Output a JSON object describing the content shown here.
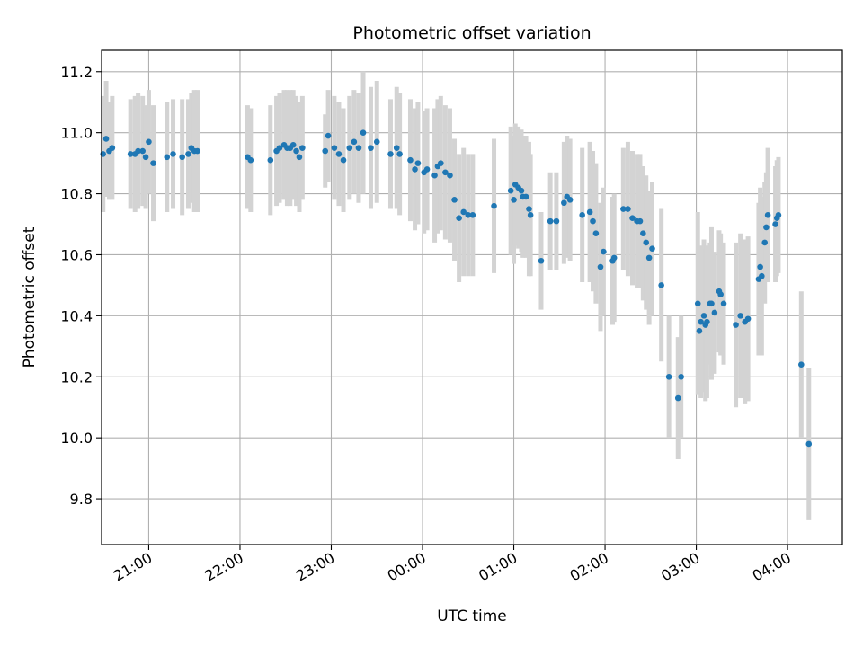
{
  "chart_data": {
    "type": "scatter",
    "title": "Photometric offset variation",
    "xlabel": "UTC time",
    "ylabel": "Photometric offset",
    "xlim": [
      "20:29",
      "04:36"
    ],
    "ylim": [
      9.65,
      11.27
    ],
    "x_ticks": [
      "21:00",
      "22:00",
      "23:00",
      "00:00",
      "01:00",
      "02:00",
      "03:00",
      "04:00"
    ],
    "y_ticks": [
      "9.8",
      "10.0",
      "10.2",
      "10.4",
      "10.6",
      "10.8",
      "11.0",
      "11.2"
    ],
    "grid": true,
    "point_color": "#1f77b4",
    "errorbar_color": "#d3d3d3",
    "series": [
      {
        "points": [
          {
            "t": "20:30",
            "y": 10.93,
            "e": 0.19
          },
          {
            "t": "20:32",
            "y": 10.98,
            "e": 0.19
          },
          {
            "t": "20:34",
            "y": 10.94,
            "e": 0.16
          },
          {
            "t": "20:36",
            "y": 10.95,
            "e": 0.17
          },
          {
            "t": "20:48",
            "y": 10.93,
            "e": 0.18
          },
          {
            "t": "20:51",
            "y": 10.93,
            "e": 0.19
          },
          {
            "t": "20:53",
            "y": 10.94,
            "e": 0.19
          },
          {
            "t": "20:56",
            "y": 10.94,
            "e": 0.18
          },
          {
            "t": "20:58",
            "y": 10.92,
            "e": 0.17
          },
          {
            "t": "21:00",
            "y": 10.97,
            "e": 0.17
          },
          {
            "t": "21:03",
            "y": 10.9,
            "e": 0.19
          },
          {
            "t": "21:12",
            "y": 10.92,
            "e": 0.18
          },
          {
            "t": "21:16",
            "y": 10.93,
            "e": 0.18
          },
          {
            "t": "21:22",
            "y": 10.92,
            "e": 0.19
          },
          {
            "t": "21:26",
            "y": 10.93,
            "e": 0.18
          },
          {
            "t": "21:28",
            "y": 10.95,
            "e": 0.18
          },
          {
            "t": "21:30",
            "y": 10.94,
            "e": 0.2
          },
          {
            "t": "21:32",
            "y": 10.94,
            "e": 0.2
          },
          {
            "t": "22:05",
            "y": 10.92,
            "e": 0.17
          },
          {
            "t": "22:07",
            "y": 10.91,
            "e": 0.17
          },
          {
            "t": "22:20",
            "y": 10.91,
            "e": 0.18
          },
          {
            "t": "22:24",
            "y": 10.94,
            "e": 0.18
          },
          {
            "t": "22:26",
            "y": 10.95,
            "e": 0.18
          },
          {
            "t": "22:29",
            "y": 10.96,
            "e": 0.18
          },
          {
            "t": "22:31",
            "y": 10.95,
            "e": 0.19
          },
          {
            "t": "22:33",
            "y": 10.95,
            "e": 0.19
          },
          {
            "t": "22:35",
            "y": 10.96,
            "e": 0.18
          },
          {
            "t": "22:37",
            "y": 10.94,
            "e": 0.18
          },
          {
            "t": "22:39",
            "y": 10.92,
            "e": 0.18
          },
          {
            "t": "22:41",
            "y": 10.95,
            "e": 0.17
          },
          {
            "t": "22:56",
            "y": 10.94,
            "e": 0.12
          },
          {
            "t": "22:58",
            "y": 10.99,
            "e": 0.15
          },
          {
            "t": "23:02",
            "y": 10.95,
            "e": 0.17
          },
          {
            "t": "23:05",
            "y": 10.93,
            "e": 0.17
          },
          {
            "t": "23:08",
            "y": 10.91,
            "e": 0.17
          },
          {
            "t": "23:12",
            "y": 10.95,
            "e": 0.17
          },
          {
            "t": "23:15",
            "y": 10.97,
            "e": 0.17
          },
          {
            "t": "23:18",
            "y": 10.95,
            "e": 0.18
          },
          {
            "t": "23:21",
            "y": 11.0,
            "e": 0.2
          },
          {
            "t": "23:26",
            "y": 10.95,
            "e": 0.2
          },
          {
            "t": "23:30",
            "y": 10.97,
            "e": 0.2
          },
          {
            "t": "23:39",
            "y": 10.93,
            "e": 0.18
          },
          {
            "t": "23:43",
            "y": 10.95,
            "e": 0.2
          },
          {
            "t": "23:45",
            "y": 10.93,
            "e": 0.2
          },
          {
            "t": "23:52",
            "y": 10.91,
            "e": 0.2
          },
          {
            "t": "23:55",
            "y": 10.88,
            "e": 0.2
          },
          {
            "t": "23:57",
            "y": 10.9,
            "e": 0.2
          },
          {
            "t": "00:01",
            "y": 10.87,
            "e": 0.2
          },
          {
            "t": "00:03",
            "y": 10.88,
            "e": 0.2
          },
          {
            "t": "00:08",
            "y": 10.86,
            "e": 0.22
          },
          {
            "t": "00:10",
            "y": 10.89,
            "e": 0.22
          },
          {
            "t": "00:12",
            "y": 10.9,
            "e": 0.22
          },
          {
            "t": "00:15",
            "y": 10.87,
            "e": 0.22
          },
          {
            "t": "00:18",
            "y": 10.86,
            "e": 0.22
          },
          {
            "t": "00:21",
            "y": 10.78,
            "e": 0.2
          },
          {
            "t": "00:24",
            "y": 10.72,
            "e": 0.21
          },
          {
            "t": "00:27",
            "y": 10.74,
            "e": 0.21
          },
          {
            "t": "00:30",
            "y": 10.73,
            "e": 0.2
          },
          {
            "t": "00:33",
            "y": 10.73,
            "e": 0.2
          },
          {
            "t": "00:47",
            "y": 10.76,
            "e": 0.22
          },
          {
            "t": "00:58",
            "y": 10.81,
            "e": 0.21
          },
          {
            "t": "01:00",
            "y": 10.78,
            "e": 0.21
          },
          {
            "t": "01:01",
            "y": 10.83,
            "e": 0.2
          },
          {
            "t": "01:03",
            "y": 10.82,
            "e": 0.2
          },
          {
            "t": "01:05",
            "y": 10.81,
            "e": 0.2
          },
          {
            "t": "01:06",
            "y": 10.79,
            "e": 0.2
          },
          {
            "t": "01:08",
            "y": 10.79,
            "e": 0.2
          },
          {
            "t": "01:10",
            "y": 10.75,
            "e": 0.22
          },
          {
            "t": "01:11",
            "y": 10.73,
            "e": 0.2
          },
          {
            "t": "01:18",
            "y": 10.58,
            "e": 0.16
          },
          {
            "t": "01:24",
            "y": 10.71,
            "e": 0.16
          },
          {
            "t": "01:28",
            "y": 10.71,
            "e": 0.16
          },
          {
            "t": "01:33",
            "y": 10.77,
            "e": 0.2
          },
          {
            "t": "01:35",
            "y": 10.79,
            "e": 0.2
          },
          {
            "t": "01:37",
            "y": 10.78,
            "e": 0.2
          },
          {
            "t": "01:45",
            "y": 10.73,
            "e": 0.22
          },
          {
            "t": "01:50",
            "y": 10.74,
            "e": 0.23
          },
          {
            "t": "01:52",
            "y": 10.71,
            "e": 0.23
          },
          {
            "t": "01:54",
            "y": 10.67,
            "e": 0.23
          },
          {
            "t": "01:57",
            "y": 10.56,
            "e": 0.21
          },
          {
            "t": "01:59",
            "y": 10.61,
            "e": 0.21
          },
          {
            "t": "02:05",
            "y": 10.58,
            "e": 0.21
          },
          {
            "t": "02:06",
            "y": 10.59,
            "e": 0.21
          },
          {
            "t": "02:12",
            "y": 10.75,
            "e": 0.2
          },
          {
            "t": "02:15",
            "y": 10.75,
            "e": 0.22
          },
          {
            "t": "02:18",
            "y": 10.72,
            "e": 0.22
          },
          {
            "t": "02:21",
            "y": 10.71,
            "e": 0.22
          },
          {
            "t": "02:23",
            "y": 10.71,
            "e": 0.22
          },
          {
            "t": "02:25",
            "y": 10.67,
            "e": 0.22
          },
          {
            "t": "02:27",
            "y": 10.64,
            "e": 0.22
          },
          {
            "t": "02:29",
            "y": 10.59,
            "e": 0.22
          },
          {
            "t": "02:31",
            "y": 10.62,
            "e": 0.22
          },
          {
            "t": "02:37",
            "y": 10.5,
            "e": 0.25
          },
          {
            "t": "02:42",
            "y": 10.2,
            "e": 0.2
          },
          {
            "t": "02:48",
            "y": 10.13,
            "e": 0.2
          },
          {
            "t": "02:50",
            "y": 10.2,
            "e": 0.2
          },
          {
            "t": "03:01",
            "y": 10.44,
            "e": 0.3
          },
          {
            "t": "03:02",
            "y": 10.35,
            "e": 0.2
          },
          {
            "t": "03:03",
            "y": 10.38,
            "e": 0.25
          },
          {
            "t": "03:05",
            "y": 10.4,
            "e": 0.25
          },
          {
            "t": "03:06",
            "y": 10.37,
            "e": 0.25
          },
          {
            "t": "03:07",
            "y": 10.38,
            "e": 0.25
          },
          {
            "t": "03:09",
            "y": 10.44,
            "e": 0.2
          },
          {
            "t": "03:10",
            "y": 10.44,
            "e": 0.25
          },
          {
            "t": "03:12",
            "y": 10.41,
            "e": 0.2
          },
          {
            "t": "03:15",
            "y": 10.48,
            "e": 0.2
          },
          {
            "t": "03:16",
            "y": 10.47,
            "e": 0.2
          },
          {
            "t": "03:18",
            "y": 10.44,
            "e": 0.2
          },
          {
            "t": "03:26",
            "y": 10.37,
            "e": 0.27
          },
          {
            "t": "03:29",
            "y": 10.4,
            "e": 0.27
          },
          {
            "t": "03:32",
            "y": 10.38,
            "e": 0.27
          },
          {
            "t": "03:34",
            "y": 10.39,
            "e": 0.27
          },
          {
            "t": "03:41",
            "y": 10.52,
            "e": 0.25
          },
          {
            "t": "03:42",
            "y": 10.56,
            "e": 0.26
          },
          {
            "t": "03:43",
            "y": 10.53,
            "e": 0.26
          },
          {
            "t": "03:45",
            "y": 10.64,
            "e": 0.2
          },
          {
            "t": "03:46",
            "y": 10.69,
            "e": 0.18
          },
          {
            "t": "03:47",
            "y": 10.73,
            "e": 0.22
          },
          {
            "t": "03:52",
            "y": 10.7,
            "e": 0.19
          },
          {
            "t": "03:53",
            "y": 10.72,
            "e": 0.19
          },
          {
            "t": "03:54",
            "y": 10.73,
            "e": 0.19
          },
          {
            "t": "04:09",
            "y": 10.24,
            "e": 0.24
          },
          {
            "t": "04:14",
            "y": 9.98,
            "e": 0.25
          }
        ]
      }
    ]
  }
}
